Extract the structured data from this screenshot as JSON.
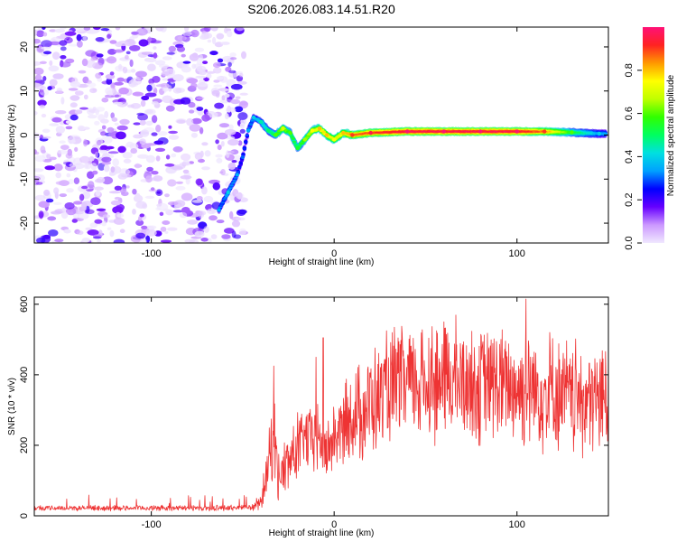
{
  "page": {
    "title": "S206.2026.083.14.51.R20"
  },
  "colors": {
    "snr_line": "#ee3333",
    "frame": "#000000"
  },
  "chart_data": [
    {
      "id": "spectrogram",
      "type": "heatmap",
      "xlabel": "Height of straight line (km)",
      "ylabel": "Frequency (Hz)",
      "xlim": [
        -164,
        150
      ],
      "ylim": [
        -24.5,
        24.5
      ],
      "xticks": [
        -100,
        0,
        100
      ],
      "yticks": [
        -20,
        -10,
        0,
        10,
        20
      ],
      "colorbar": {
        "label": "Normalized spectral amplitude",
        "range": [
          0.0,
          1.0
        ],
        "ticks": [
          "0.0",
          "0.2",
          "0.4",
          "0.6",
          "0.8"
        ],
        "tick_values": [
          0.0,
          0.2,
          0.4,
          0.6,
          0.8
        ],
        "gradient": [
          "#f0e8ff",
          "#cc99ff",
          "#6600ff",
          "#0000ff",
          "#00a0ff",
          "#00e0e0",
          "#00ff60",
          "#30ff00",
          "#c0ff00",
          "#ffff00",
          "#ff9900",
          "#ff2222",
          "#ff1177"
        ]
      },
      "noise_region_x": [
        -164,
        -55
      ],
      "signal_ridge": [
        {
          "x": -63,
          "f": -17,
          "amp": 0.3
        },
        {
          "x": -58,
          "f": -13,
          "amp": 0.35
        },
        {
          "x": -53,
          "f": -9,
          "amp": 0.3
        },
        {
          "x": -50,
          "f": -5,
          "amp": 0.25
        },
        {
          "x": -47,
          "f": 1,
          "amp": 0.3
        },
        {
          "x": -44,
          "f": 4,
          "amp": 0.35
        },
        {
          "x": -40,
          "f": 3,
          "amp": 0.4
        },
        {
          "x": -36,
          "f": 1,
          "amp": 0.45
        },
        {
          "x": -32,
          "f": 0,
          "amp": 0.55
        },
        {
          "x": -28,
          "f": 1.5,
          "amp": 0.65
        },
        {
          "x": -24,
          "f": 0.5,
          "amp": 0.55
        },
        {
          "x": -20,
          "f": -3,
          "amp": 0.5
        },
        {
          "x": -16,
          "f": -1,
          "amp": 0.6
        },
        {
          "x": -12,
          "f": 1,
          "amp": 0.7
        },
        {
          "x": -8,
          "f": 1.5,
          "amp": 0.75
        },
        {
          "x": -4,
          "f": 0,
          "amp": 0.75
        },
        {
          "x": 0,
          "f": -1,
          "amp": 0.7
        },
        {
          "x": 5,
          "f": 0.5,
          "amp": 0.75
        },
        {
          "x": 10,
          "f": 0,
          "amp": 0.85
        },
        {
          "x": 20,
          "f": 0.5,
          "amp": 0.9
        },
        {
          "x": 40,
          "f": 0.8,
          "amp": 0.95
        },
        {
          "x": 60,
          "f": 0.8,
          "amp": 0.95
        },
        {
          "x": 80,
          "f": 0.8,
          "amp": 0.95
        },
        {
          "x": 100,
          "f": 0.8,
          "amp": 0.95
        },
        {
          "x": 115,
          "f": 0.8,
          "amp": 0.85
        },
        {
          "x": 130,
          "f": 0.6,
          "amp": 0.55
        },
        {
          "x": 145,
          "f": 0.3,
          "amp": 0.35
        }
      ]
    },
    {
      "id": "snr",
      "type": "line",
      "xlabel": "Height of straight line (km)",
      "ylabel": "SNR (10 * v/v)",
      "xlim": [
        -164,
        150
      ],
      "ylim": [
        0,
        620
      ],
      "xticks": [
        -100,
        0,
        100
      ],
      "yticks": [
        0,
        200,
        400,
        600
      ],
      "color": "#ee3333",
      "envelope_x": [
        -164,
        -60,
        -45,
        -40,
        -36,
        -33,
        -30,
        -25,
        -20,
        -15,
        -10,
        -5,
        0,
        10,
        20,
        30,
        40,
        60,
        80,
        100,
        120,
        140,
        150
      ],
      "envelope_snr": [
        22,
        22,
        25,
        40,
        150,
        240,
        110,
        160,
        200,
        230,
        240,
        180,
        230,
        290,
        330,
        370,
        390,
        400,
        390,
        380,
        360,
        340,
        350
      ],
      "peaks": [
        {
          "x": -33,
          "snr": 425
        },
        {
          "x": -10,
          "snr": 450
        },
        {
          "x": -6,
          "snr": 505
        },
        {
          "x": 60,
          "snr": 550
        },
        {
          "x": 105,
          "snr": 615
        },
        {
          "x": 118,
          "snr": 520
        },
        {
          "x": 150,
          "snr": 480
        }
      ]
    }
  ]
}
